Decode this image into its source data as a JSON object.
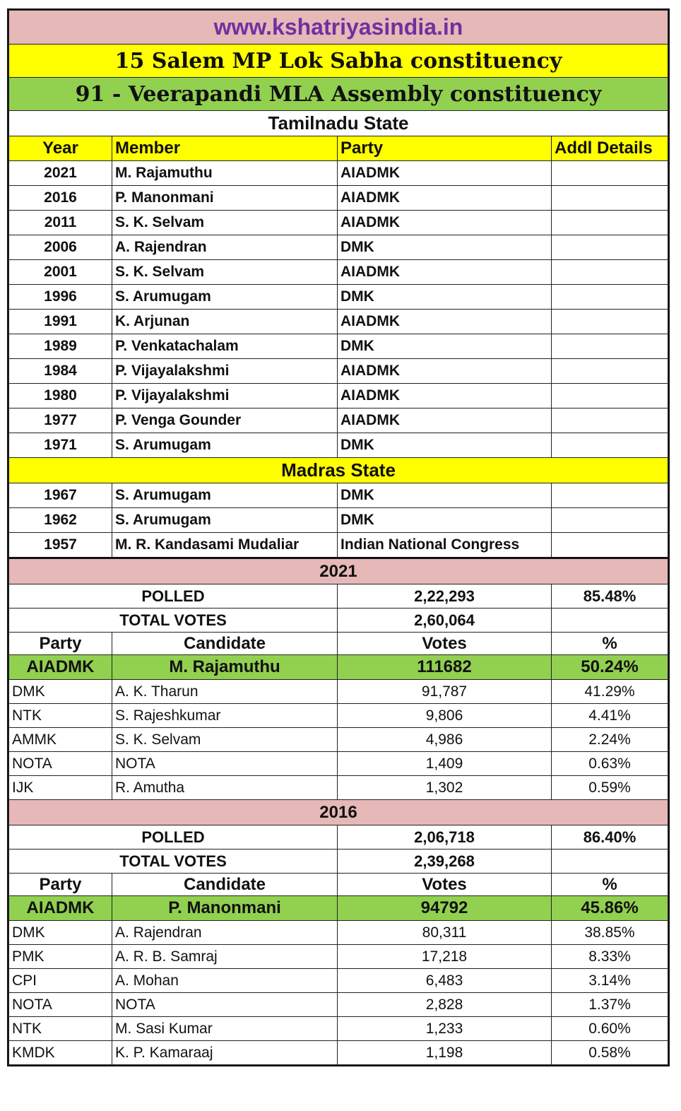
{
  "site": "www.kshatriyasindia.in",
  "lok_sabha": "15 Salem MP Lok Sabha constituency",
  "assembly": "91 - Veerapandi MLA Assembly constituency",
  "colors": {
    "pink": "#e6b8b7",
    "yellow": "#ffff00",
    "green": "#92d050",
    "site_text": "#7030a0"
  },
  "tamilnadu": {
    "label": "Tamilnadu State",
    "headers": [
      "Year",
      "Member",
      "Party",
      "Addl Details"
    ],
    "rows": [
      [
        "2021",
        "M. Rajamuthu",
        "AIADMK",
        ""
      ],
      [
        "2016",
        "P. Manonmani",
        "AIADMK",
        ""
      ],
      [
        "2011",
        "S. K. Selvam",
        "AIADMK",
        ""
      ],
      [
        "2006",
        "A. Rajendran",
        "DMK",
        ""
      ],
      [
        "2001",
        "S. K. Selvam",
        "AIADMK",
        ""
      ],
      [
        "1996",
        "S. Arumugam",
        "DMK",
        ""
      ],
      [
        "1991",
        "K. Arjunan",
        "AIADMK",
        ""
      ],
      [
        "1989",
        "P. Venkatachalam",
        "DMK",
        ""
      ],
      [
        "1984",
        "P. Vijayalakshmi",
        "AIADMK",
        ""
      ],
      [
        "1980",
        "P. Vijayalakshmi",
        "AIADMK",
        ""
      ],
      [
        "1977",
        "P. Venga Gounder",
        "AIADMK",
        ""
      ],
      [
        "1971",
        "S. Arumugam",
        "DMK",
        ""
      ]
    ]
  },
  "madras": {
    "label": "Madras State",
    "rows": [
      [
        "1967",
        "S. Arumugam",
        "DMK",
        ""
      ],
      [
        "1962",
        "S. Arumugam",
        "DMK",
        ""
      ],
      [
        "1957",
        "M. R. Kandasami Mudaliar",
        "Indian National Congress",
        ""
      ]
    ]
  },
  "results": [
    {
      "year": "2021",
      "polled_label": "POLLED",
      "polled": "2,22,293",
      "polled_pct": "85.48%",
      "total_label": "TOTAL VOTES",
      "total": "2,60,064",
      "headers": [
        "Party",
        "Candidate",
        "Votes",
        "%"
      ],
      "winner": [
        "AIADMK",
        "M. Rajamuthu",
        "111682",
        "50.24%"
      ],
      "rows": [
        [
          "DMK",
          "A. K. Tharun",
          "91,787",
          "41.29%"
        ],
        [
          "NTK",
          "S. Rajeshkumar",
          "9,806",
          "4.41%"
        ],
        [
          "AMMK",
          "S. K. Selvam",
          "4,986",
          "2.24%"
        ],
        [
          "NOTA",
          "NOTA",
          "1,409",
          "0.63%"
        ],
        [
          "IJK",
          "R. Amutha",
          "1,302",
          "0.59%"
        ]
      ]
    },
    {
      "year": "2016",
      "polled_label": "POLLED",
      "polled": "2,06,718",
      "polled_pct": "86.40%",
      "total_label": "TOTAL VOTES",
      "total": "2,39,268",
      "headers": [
        "Party",
        "Candidate",
        "Votes",
        "%"
      ],
      "winner": [
        "AIADMK",
        "P. Manonmani",
        "94792",
        "45.86%"
      ],
      "rows": [
        [
          "DMK",
          "A. Rajendran",
          "80,311",
          "38.85%"
        ],
        [
          "PMK",
          "A. R. B. Samraj",
          "17,218",
          "8.33%"
        ],
        [
          "CPI",
          "A. Mohan",
          "6,483",
          "3.14%"
        ],
        [
          "NOTA",
          "NOTA",
          "2,828",
          "1.37%"
        ],
        [
          "NTK",
          "M. Sasi Kumar",
          "1,233",
          "0.60%"
        ],
        [
          "KMDK",
          "K. P. Kamaraaj",
          "1,198",
          "0.58%"
        ]
      ]
    }
  ]
}
